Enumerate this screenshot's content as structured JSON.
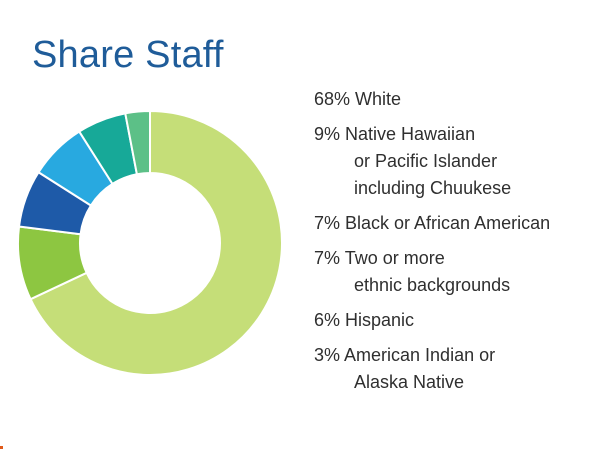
{
  "title": "Share Staff",
  "chart_data": {
    "type": "pie",
    "title": "Share Staff",
    "values": [
      68,
      9,
      7,
      7,
      6,
      3
    ],
    "colors": [
      "#c5de78",
      "#8dc641",
      "#1e5aa8",
      "#28a9e0",
      "#17a998",
      "#5cc087"
    ],
    "legend": {
      "placement": "right",
      "items": [
        {
          "lines": [
            "68% White"
          ]
        },
        {
          "lines": [
            "9% Native Hawaiian",
            "or Pacific Islander",
            "including Chuukese"
          ]
        },
        {
          "lines": [
            "7% Black or African American"
          ]
        },
        {
          "lines": [
            "7% Two or more",
            "ethnic backgrounds"
          ]
        },
        {
          "lines": [
            "6% Hispanic"
          ]
        },
        {
          "lines": [
            "3% American Indian or",
            "Alaska Native"
          ]
        }
      ]
    }
  }
}
